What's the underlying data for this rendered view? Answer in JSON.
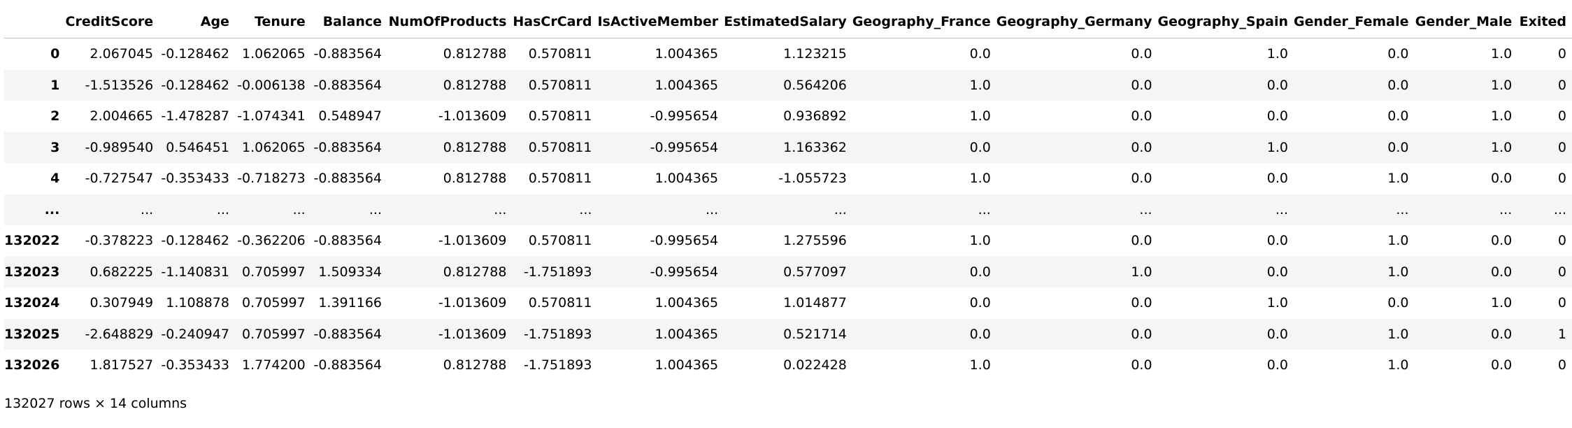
{
  "table": {
    "columns": [
      "CreditScore",
      "Age",
      "Tenure",
      "Balance",
      "NumOfProducts",
      "HasCrCard",
      "IsActiveMember",
      "EstimatedSalary",
      "Geography_France",
      "Geography_Germany",
      "Geography_Spain",
      "Gender_Female",
      "Gender_Male",
      "Exited"
    ],
    "rows": [
      {
        "index": "0",
        "cells": [
          "2.067045",
          "-0.128462",
          "1.062065",
          "-0.883564",
          "0.812788",
          "0.570811",
          "1.004365",
          "1.123215",
          "0.0",
          "0.0",
          "1.0",
          "0.0",
          "1.0",
          "0"
        ]
      },
      {
        "index": "1",
        "cells": [
          "-1.513526",
          "-0.128462",
          "-0.006138",
          "-0.883564",
          "0.812788",
          "0.570811",
          "1.004365",
          "0.564206",
          "1.0",
          "0.0",
          "0.0",
          "0.0",
          "1.0",
          "0"
        ]
      },
      {
        "index": "2",
        "cells": [
          "2.004665",
          "-1.478287",
          "-1.074341",
          "0.548947",
          "-1.013609",
          "0.570811",
          "-0.995654",
          "0.936892",
          "1.0",
          "0.0",
          "0.0",
          "0.0",
          "1.0",
          "0"
        ]
      },
      {
        "index": "3",
        "cells": [
          "-0.989540",
          "0.546451",
          "1.062065",
          "-0.883564",
          "0.812788",
          "0.570811",
          "-0.995654",
          "1.163362",
          "0.0",
          "0.0",
          "1.0",
          "0.0",
          "1.0",
          "0"
        ]
      },
      {
        "index": "4",
        "cells": [
          "-0.727547",
          "-0.353433",
          "-0.718273",
          "-0.883564",
          "0.812788",
          "0.570811",
          "1.004365",
          "-1.055723",
          "1.0",
          "0.0",
          "0.0",
          "1.0",
          "0.0",
          "0"
        ]
      },
      {
        "index": "...",
        "cells": [
          "...",
          "...",
          "...",
          "...",
          "...",
          "...",
          "...",
          "...",
          "...",
          "...",
          "...",
          "...",
          "...",
          "..."
        ]
      },
      {
        "index": "132022",
        "cells": [
          "-0.378223",
          "-0.128462",
          "-0.362206",
          "-0.883564",
          "-1.013609",
          "0.570811",
          "-0.995654",
          "1.275596",
          "1.0",
          "0.0",
          "0.0",
          "1.0",
          "0.0",
          "0"
        ]
      },
      {
        "index": "132023",
        "cells": [
          "0.682225",
          "-1.140831",
          "0.705997",
          "1.509334",
          "0.812788",
          "-1.751893",
          "-0.995654",
          "0.577097",
          "0.0",
          "1.0",
          "0.0",
          "1.0",
          "0.0",
          "0"
        ]
      },
      {
        "index": "132024",
        "cells": [
          "0.307949",
          "1.108878",
          "0.705997",
          "1.391166",
          "-1.013609",
          "0.570811",
          "1.004365",
          "1.014877",
          "0.0",
          "0.0",
          "1.0",
          "0.0",
          "1.0",
          "0"
        ]
      },
      {
        "index": "132025",
        "cells": [
          "-2.648829",
          "-0.240947",
          "0.705997",
          "-0.883564",
          "-1.013609",
          "-1.751893",
          "1.004365",
          "0.521714",
          "0.0",
          "0.0",
          "0.0",
          "1.0",
          "0.0",
          "1"
        ]
      },
      {
        "index": "132026",
        "cells": [
          "1.817527",
          "-0.353433",
          "1.774200",
          "-0.883564",
          "0.812788",
          "-1.751893",
          "1.004365",
          "0.022428",
          "1.0",
          "0.0",
          "0.0",
          "1.0",
          "0.0",
          "0"
        ]
      }
    ]
  },
  "footer": "132027 rows × 14 columns"
}
